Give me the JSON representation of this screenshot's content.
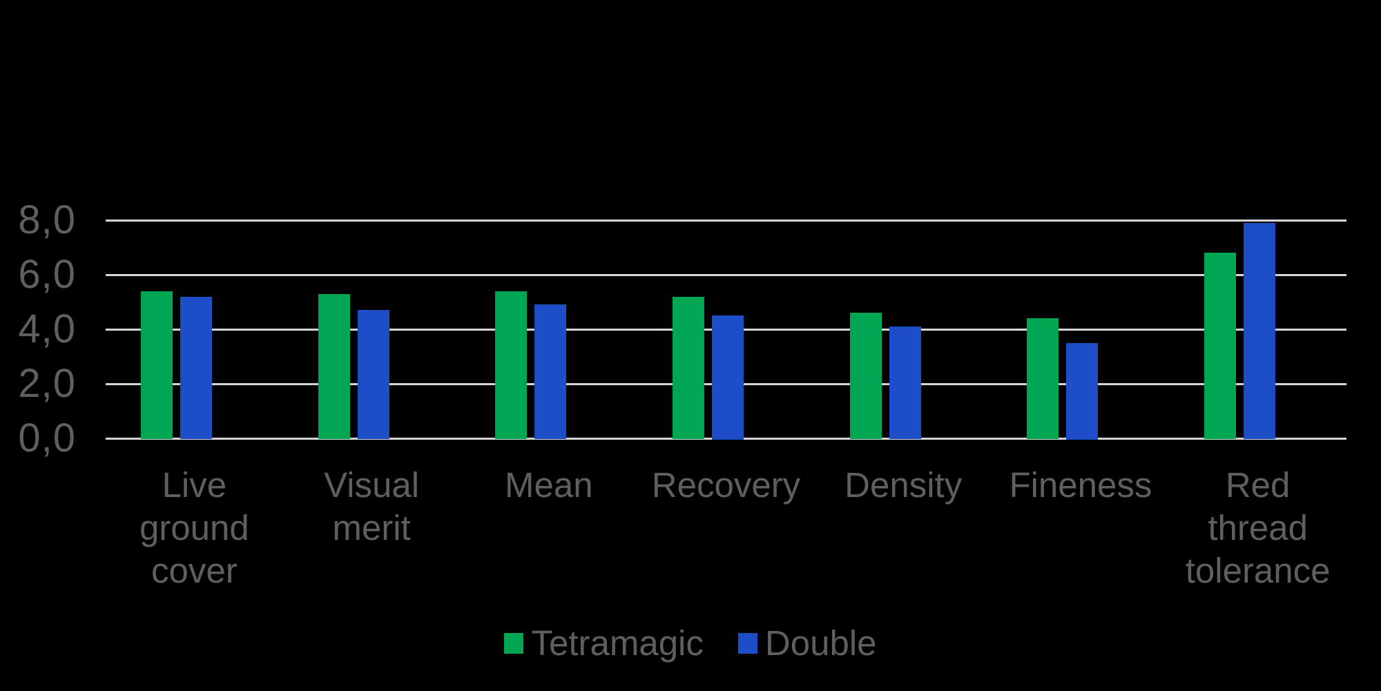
{
  "chart_data": {
    "type": "bar",
    "title": "",
    "categories": [
      "Live\nground\ncover",
      "Visual\nmerit",
      "Mean",
      "Recovery",
      "Density",
      "Fineness",
      "Red\nthread\ntolerance"
    ],
    "series": [
      {
        "name": "Tetramagic",
        "color": "#00A651",
        "values": [
          5.4,
          5.3,
          5.4,
          5.2,
          4.6,
          4.4,
          6.8
        ]
      },
      {
        "name": "Double",
        "color": "#1E4DC8",
        "values": [
          5.2,
          4.7,
          4.9,
          4.5,
          4.1,
          3.5,
          7.9
        ]
      }
    ],
    "y_axis": {
      "ticks": [
        "0,0",
        "2,0",
        "4,0",
        "6,0",
        "8,0"
      ],
      "tick_values": [
        0,
        2,
        4,
        6,
        8
      ],
      "ylim": [
        0,
        8
      ],
      "decimal_separator": ","
    },
    "grid": true,
    "legend_position": "bottom",
    "colors": {
      "background": "#000000",
      "gridline": "#D6D6D6",
      "label_text": "#5F5F5F"
    }
  }
}
